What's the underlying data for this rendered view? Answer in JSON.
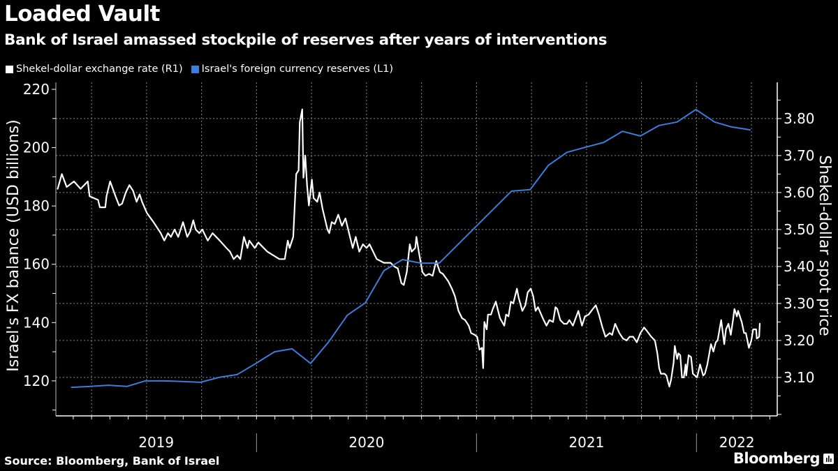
{
  "header": {
    "title": "Loaded Vault",
    "subtitle": "Bank of Israel amassed stockpile of reserves after years of interventions"
  },
  "footer": {
    "source": "Source: Bloomberg, Bank of Israel",
    "brand": "Bloomberg",
    "brand_icon": "bar-chart-icon"
  },
  "colors": {
    "background": "#000000",
    "exchange_rate": "#ffffff",
    "reserves": "#3d7ddb",
    "grid": "#8a8a8a"
  },
  "chart_data": {
    "type": "line",
    "title": "Loaded Vault",
    "subtitle": "Bank of Israel amassed stockpile of reserves after years of interventions",
    "x_range": [
      "2019-02-02",
      "2022-05-15"
    ],
    "x_tick_labels": [
      "2019",
      "2020",
      "2021",
      "2022"
    ],
    "x_ticks": "monthly",
    "grid": true,
    "legend_position": "top-left",
    "y_left": {
      "label": "Israel's FX balance (USD billions)",
      "range": [
        108,
        222.4
      ],
      "ticks": [
        "120",
        "140",
        "160",
        "180",
        "200",
        "220"
      ]
    },
    "y_right": {
      "label": "Shekel-dollar spot price",
      "range": [
        2.996,
        3.898
      ],
      "ticks": [
        "3.10",
        "3.20",
        "3.30",
        "3.40",
        "3.50",
        "3.60",
        "3.70",
        "3.80"
      ]
    },
    "series": [
      {
        "name": "Shekel-dollar exchange rate (R1)",
        "axis": "right",
        "color": "#ffffff",
        "points": [
          [
            "2019-02-05",
            3.61
          ],
          [
            "2019-02-12",
            3.65
          ],
          [
            "2019-02-20",
            3.615
          ],
          [
            "2019-03-04",
            3.63
          ],
          [
            "2019-03-15",
            3.61
          ],
          [
            "2019-03-27",
            3.63
          ],
          [
            "2019-03-30",
            3.59
          ],
          [
            "2019-04-13",
            3.58
          ],
          [
            "2019-04-16",
            3.56
          ],
          [
            "2019-04-25",
            3.56
          ],
          [
            "2019-04-27",
            3.59
          ],
          [
            "2019-05-03",
            3.63
          ],
          [
            "2019-05-12",
            3.59
          ],
          [
            "2019-05-18",
            3.565
          ],
          [
            "2019-05-23",
            3.57
          ],
          [
            "2019-05-29",
            3.6
          ],
          [
            "2019-06-04",
            3.62
          ],
          [
            "2019-06-10",
            3.605
          ],
          [
            "2019-06-16",
            3.575
          ],
          [
            "2019-06-21",
            3.595
          ],
          [
            "2019-06-25",
            3.575
          ],
          [
            "2019-07-03",
            3.545
          ],
          [
            "2019-07-14",
            3.52
          ],
          [
            "2019-07-26",
            3.49
          ],
          [
            "2019-08-01",
            3.47
          ],
          [
            "2019-08-07",
            3.49
          ],
          [
            "2019-08-12",
            3.48
          ],
          [
            "2019-08-18",
            3.5
          ],
          [
            "2019-08-24",
            3.48
          ],
          [
            "2019-09-01",
            3.52
          ],
          [
            "2019-09-08",
            3.48
          ],
          [
            "2019-09-13",
            3.495
          ],
          [
            "2019-09-18",
            3.525
          ],
          [
            "2019-09-22",
            3.5
          ],
          [
            "2019-09-28",
            3.49
          ],
          [
            "2019-10-03",
            3.5
          ],
          [
            "2019-10-12",
            3.47
          ],
          [
            "2019-10-20",
            3.49
          ],
          [
            "2019-11-01",
            3.47
          ],
          [
            "2019-11-12",
            3.45
          ],
          [
            "2019-11-18",
            3.44
          ],
          [
            "2019-11-24",
            3.42
          ],
          [
            "2019-11-30",
            3.43
          ],
          [
            "2019-12-05",
            3.42
          ],
          [
            "2019-12-11",
            3.48
          ],
          [
            "2019-12-17",
            3.45
          ],
          [
            "2019-12-20",
            3.47
          ],
          [
            "2019-12-29",
            3.45
          ],
          [
            "2020-01-04",
            3.465
          ],
          [
            "2020-01-10",
            3.455
          ],
          [
            "2020-01-19",
            3.44
          ],
          [
            "2020-02-08",
            3.42
          ],
          [
            "2020-02-17",
            3.42
          ],
          [
            "2020-02-22",
            3.47
          ],
          [
            "2020-02-25",
            3.45
          ],
          [
            "2020-03-02",
            3.48
          ],
          [
            "2020-03-07",
            3.65
          ],
          [
            "2020-03-11",
            3.66
          ],
          [
            "2020-03-13",
            3.79
          ],
          [
            "2020-03-17",
            3.825
          ],
          [
            "2020-03-19",
            3.64
          ],
          [
            "2020-03-22",
            3.7
          ],
          [
            "2020-03-25",
            3.62
          ],
          [
            "2020-03-28",
            3.565
          ],
          [
            "2020-04-02",
            3.635
          ],
          [
            "2020-04-05",
            3.585
          ],
          [
            "2020-04-11",
            3.575
          ],
          [
            "2020-04-15",
            3.6
          ],
          [
            "2020-04-20",
            3.555
          ],
          [
            "2020-04-28",
            3.5
          ],
          [
            "2020-05-01",
            3.49
          ],
          [
            "2020-05-05",
            3.52
          ],
          [
            "2020-05-10",
            3.515
          ],
          [
            "2020-05-16",
            3.54
          ],
          [
            "2020-05-22",
            3.51
          ],
          [
            "2020-05-28",
            3.53
          ],
          [
            "2020-06-03",
            3.49
          ],
          [
            "2020-06-09",
            3.45
          ],
          [
            "2020-06-14",
            3.48
          ],
          [
            "2020-06-20",
            3.44
          ],
          [
            "2020-06-26",
            3.46
          ],
          [
            "2020-07-02",
            3.45
          ],
          [
            "2020-07-07",
            3.46
          ],
          [
            "2020-07-13",
            3.44
          ],
          [
            "2020-07-19",
            3.42
          ],
          [
            "2020-07-31",
            3.41
          ],
          [
            "2020-08-11",
            3.41
          ],
          [
            "2020-08-17",
            3.4
          ],
          [
            "2020-08-23",
            3.395
          ],
          [
            "2020-08-29",
            3.355
          ],
          [
            "2020-09-02",
            3.35
          ],
          [
            "2020-09-07",
            3.385
          ],
          [
            "2020-09-12",
            3.46
          ],
          [
            "2020-09-15",
            3.44
          ],
          [
            "2020-09-21",
            3.45
          ],
          [
            "2020-09-23",
            3.48
          ],
          [
            "2020-09-27",
            3.44
          ],
          [
            "2020-10-03",
            3.385
          ],
          [
            "2020-10-08",
            3.375
          ],
          [
            "2020-10-14",
            3.38
          ],
          [
            "2020-10-20",
            3.375
          ],
          [
            "2020-10-26",
            3.415
          ],
          [
            "2020-11-01",
            3.385
          ],
          [
            "2020-11-06",
            3.38
          ],
          [
            "2020-11-15",
            3.36
          ],
          [
            "2020-11-21",
            3.34
          ],
          [
            "2020-11-26",
            3.32
          ],
          [
            "2020-12-02",
            3.28
          ],
          [
            "2020-12-08",
            3.26
          ],
          [
            "2020-12-13",
            3.255
          ],
          [
            "2020-12-19",
            3.24
          ],
          [
            "2020-12-23",
            3.22
          ],
          [
            "2020-12-29",
            3.215
          ],
          [
            "2021-01-02",
            3.21
          ],
          [
            "2021-01-06",
            3.175
          ],
          [
            "2021-01-10",
            3.18
          ],
          [
            "2021-01-12",
            3.125
          ],
          [
            "2021-01-14",
            3.25
          ],
          [
            "2021-01-18",
            3.23
          ],
          [
            "2021-01-20",
            3.27
          ],
          [
            "2021-01-25",
            3.27
          ],
          [
            "2021-01-28",
            3.285
          ],
          [
            "2021-02-02",
            3.305
          ],
          [
            "2021-02-05",
            3.285
          ],
          [
            "2021-02-09",
            3.26
          ],
          [
            "2021-02-16",
            3.24
          ],
          [
            "2021-02-19",
            3.27
          ],
          [
            "2021-02-23",
            3.265
          ],
          [
            "2021-02-27",
            3.305
          ],
          [
            "2021-03-03",
            3.3
          ],
          [
            "2021-03-09",
            3.34
          ],
          [
            "2021-03-12",
            3.315
          ],
          [
            "2021-03-18",
            3.28
          ],
          [
            "2021-03-23",
            3.295
          ],
          [
            "2021-03-27",
            3.33
          ],
          [
            "2021-04-01",
            3.34
          ],
          [
            "2021-04-05",
            3.32
          ],
          [
            "2021-04-09",
            3.28
          ],
          [
            "2021-04-13",
            3.29
          ],
          [
            "2021-04-21",
            3.26
          ],
          [
            "2021-04-27",
            3.24
          ],
          [
            "2021-05-02",
            3.255
          ],
          [
            "2021-05-08",
            3.25
          ],
          [
            "2021-05-12",
            3.29
          ],
          [
            "2021-05-15",
            3.285
          ],
          [
            "2021-05-20",
            3.255
          ],
          [
            "2021-05-26",
            3.245
          ],
          [
            "2021-05-31",
            3.245
          ],
          [
            "2021-06-04",
            3.255
          ],
          [
            "2021-06-10",
            3.24
          ],
          [
            "2021-06-19",
            3.28
          ],
          [
            "2021-06-25",
            3.24
          ],
          [
            "2021-06-30",
            3.265
          ],
          [
            "2021-07-06",
            3.27
          ],
          [
            "2021-07-13",
            3.285
          ],
          [
            "2021-07-18",
            3.295
          ],
          [
            "2021-07-23",
            3.27
          ],
          [
            "2021-07-29",
            3.235
          ],
          [
            "2021-08-03",
            3.21
          ],
          [
            "2021-08-10",
            3.22
          ],
          [
            "2021-08-14",
            3.215
          ],
          [
            "2021-08-19",
            3.245
          ],
          [
            "2021-08-26",
            3.22
          ],
          [
            "2021-09-01",
            3.205
          ],
          [
            "2021-09-07",
            3.2
          ],
          [
            "2021-09-12",
            3.21
          ],
          [
            "2021-09-18",
            3.21
          ],
          [
            "2021-09-24",
            3.195
          ],
          [
            "2021-09-30",
            3.22
          ],
          [
            "2021-10-06",
            3.235
          ],
          [
            "2021-10-11",
            3.225
          ],
          [
            "2021-10-18",
            3.21
          ],
          [
            "2021-10-24",
            3.2
          ],
          [
            "2021-10-28",
            3.165
          ],
          [
            "2021-10-31",
            3.125
          ],
          [
            "2021-11-03",
            3.11
          ],
          [
            "2021-11-09",
            3.11
          ],
          [
            "2021-11-12",
            3.105
          ],
          [
            "2021-11-17",
            3.075
          ],
          [
            "2021-11-20",
            3.095
          ],
          [
            "2021-11-24",
            3.14
          ],
          [
            "2021-11-26",
            3.185
          ],
          [
            "2021-11-30",
            3.15
          ],
          [
            "2021-12-02",
            3.165
          ],
          [
            "2021-12-05",
            3.16
          ],
          [
            "2021-12-08",
            3.1
          ],
          [
            "2021-12-11",
            3.1
          ],
          [
            "2021-12-14",
            3.135
          ],
          [
            "2021-12-15",
            3.105
          ],
          [
            "2021-12-19",
            3.16
          ],
          [
            "2021-12-23",
            3.155
          ],
          [
            "2021-12-26",
            3.11
          ],
          [
            "2022-01-02",
            3.1
          ],
          [
            "2022-01-07",
            3.135
          ],
          [
            "2022-01-12",
            3.105
          ],
          [
            "2022-01-15",
            3.11
          ],
          [
            "2022-01-19",
            3.135
          ],
          [
            "2022-01-25",
            3.19
          ],
          [
            "2022-01-29",
            3.17
          ],
          [
            "2022-02-02",
            3.195
          ],
          [
            "2022-02-05",
            3.2
          ],
          [
            "2022-02-11",
            3.255
          ],
          [
            "2022-02-16",
            3.19
          ],
          [
            "2022-02-19",
            3.23
          ],
          [
            "2022-02-23",
            3.245
          ],
          [
            "2022-02-27",
            3.215
          ],
          [
            "2022-03-03",
            3.26
          ],
          [
            "2022-03-05",
            3.285
          ],
          [
            "2022-03-09",
            3.265
          ],
          [
            "2022-03-11",
            3.28
          ],
          [
            "2022-03-17",
            3.25
          ],
          [
            "2022-03-21",
            3.22
          ],
          [
            "2022-03-24",
            3.22
          ],
          [
            "2022-03-29",
            3.18
          ],
          [
            "2022-04-02",
            3.2
          ],
          [
            "2022-04-05",
            3.23
          ],
          [
            "2022-04-10",
            3.23
          ],
          [
            "2022-04-11",
            3.205
          ],
          [
            "2022-04-15",
            3.21
          ],
          [
            "2022-04-16",
            3.245
          ]
        ]
      },
      {
        "name": "Israel's foreign currency reserves (L1)",
        "axis": "left",
        "color": "#3d7ddb",
        "points": [
          [
            "2019-02-28",
            117.8
          ],
          [
            "2019-03-31",
            118.1
          ],
          [
            "2019-04-30",
            118.5
          ],
          [
            "2019-05-31",
            118.1
          ],
          [
            "2019-06-30",
            120.0
          ],
          [
            "2019-07-31",
            120.0
          ],
          [
            "2019-08-31",
            119.8
          ],
          [
            "2019-09-30",
            119.5
          ],
          [
            "2019-10-31",
            121.2
          ],
          [
            "2019-11-30",
            122.2
          ],
          [
            "2019-12-31",
            126.0
          ],
          [
            "2020-01-31",
            130.0
          ],
          [
            "2020-02-29",
            131.0
          ],
          [
            "2020-03-31",
            126.0
          ],
          [
            "2020-04-30",
            133.4
          ],
          [
            "2020-05-31",
            142.5
          ],
          [
            "2020-06-30",
            146.8
          ],
          [
            "2020-07-31",
            157.8
          ],
          [
            "2020-08-31",
            161.6
          ],
          [
            "2020-09-30",
            160.4
          ],
          [
            "2020-10-31",
            160.4
          ],
          [
            "2021-02-28",
            185.1
          ],
          [
            "2021-03-31",
            185.6
          ],
          [
            "2021-04-30",
            193.9
          ],
          [
            "2021-05-31",
            198.4
          ],
          [
            "2021-06-30",
            200.1
          ],
          [
            "2021-07-31",
            201.8
          ],
          [
            "2021-08-31",
            205.6
          ],
          [
            "2021-09-30",
            204.0
          ],
          [
            "2021-10-31",
            207.6
          ],
          [
            "2021-11-30",
            208.8
          ],
          [
            "2021-12-31",
            213.1
          ],
          [
            "2022-01-31",
            208.8
          ],
          [
            "2022-02-28",
            207.1
          ],
          [
            "2022-03-31",
            206.1
          ]
        ]
      }
    ]
  }
}
